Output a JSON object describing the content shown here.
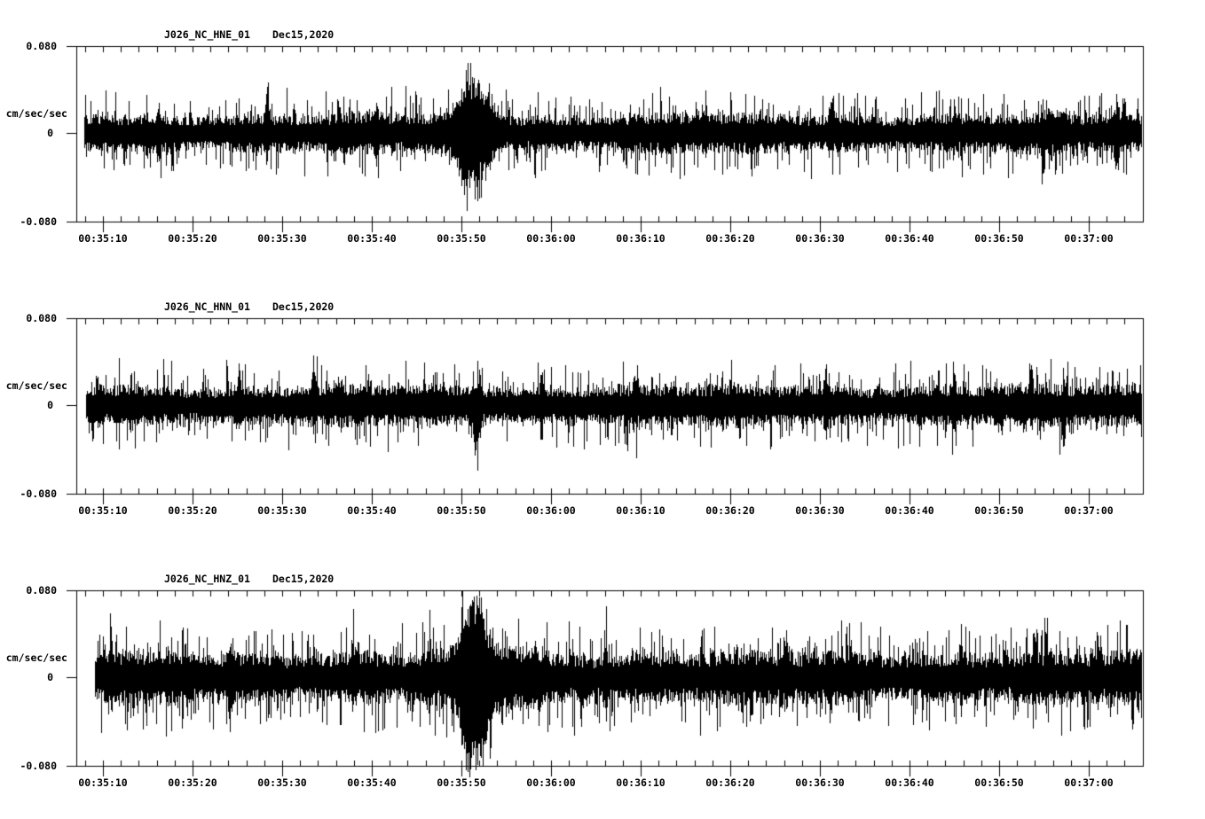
{
  "page": {
    "background_color": "#ffffff",
    "trace_color": "#000000",
    "text_color": "#000000"
  },
  "chart_data": [
    {
      "type": "line",
      "panel": "top",
      "station": "J026_NC_HNE_01",
      "date": "Dec15,2020",
      "ylabel": "cm/sec/sec",
      "y_max_label": "0.080",
      "y_zero_label": "0",
      "y_min_label": "-0.080",
      "ylim": [
        -0.08,
        0.08
      ],
      "xtick_labels": [
        "00:35:10",
        "00:35:20",
        "00:35:30",
        "00:35:40",
        "00:35:50",
        "00:36:00",
        "00:36:10",
        "00:36:20",
        "00:36:30",
        "00:36:40",
        "00:36:50",
        "00:37:00"
      ],
      "xtick_interval_seconds": 10,
      "minor_tick_seconds": 2,
      "time_window": {
        "start": "00:35:07",
        "end": "00:37:06"
      },
      "grid": "off",
      "trace": {
        "seed": 101,
        "start_t": 7.9,
        "end_t": 125.8,
        "noise_amp": 0.0171,
        "noise_tail_amp": 0.0278,
        "tail_exponent": 8,
        "clips_bottom_axis": false,
        "events": [
          {
            "t": 51.45,
            "sigma": 1.3,
            "up": 0.036,
            "down": 0.042
          },
          {
            "t": 50.1,
            "sigma": 0.5,
            "up": 0.012,
            "down": 0.01
          },
          {
            "t": 28.3,
            "sigma": 0.18,
            "up": 0.026,
            "down": 0.01
          },
          {
            "t": 16.2,
            "sigma": 0.15,
            "up": 0.016,
            "down": 0.018
          },
          {
            "t": 40.5,
            "sigma": 0.15,
            "up": 0.014,
            "down": 0.016
          },
          {
            "t": 91.2,
            "sigma": 0.18,
            "up": 0.022,
            "down": 0.01
          },
          {
            "t": 114.9,
            "sigma": 0.15,
            "up": 0.008,
            "down": 0.026
          },
          {
            "t": 123.1,
            "sigma": 0.18,
            "up": 0.02,
            "down": 0.022
          }
        ]
      }
    },
    {
      "type": "line",
      "panel": "middle",
      "station": "J026_NC_HNN_01",
      "date": "Dec15,2020",
      "ylabel": "cm/sec/sec",
      "y_max_label": "0.080",
      "y_zero_label": "0",
      "y_min_label": "-0.080",
      "ylim": [
        -0.08,
        0.08
      ],
      "xtick_labels": [
        "00:35:10",
        "00:35:20",
        "00:35:30",
        "00:35:40",
        "00:35:50",
        "00:36:00",
        "00:36:10",
        "00:36:20",
        "00:36:30",
        "00:36:40",
        "00:36:50",
        "00:37:00"
      ],
      "xtick_interval_seconds": 10,
      "minor_tick_seconds": 2,
      "time_window": {
        "start": "00:35:07",
        "end": "00:37:06"
      },
      "grid": "off",
      "trace": {
        "seed": 202,
        "start_t": 8.1,
        "end_t": 125.8,
        "noise_amp": 0.018,
        "noise_tail_amp": 0.0278,
        "tail_exponent": 9,
        "clips_bottom_axis": false,
        "events": [
          {
            "t": 33.5,
            "sigma": 0.18,
            "up": 0.04,
            "down": 0.01
          },
          {
            "t": 51.7,
            "sigma": 0.3,
            "up": 0.01,
            "down": 0.045
          },
          {
            "t": 25.1,
            "sigma": 0.15,
            "up": 0.016,
            "down": 0.014
          },
          {
            "t": 58.9,
            "sigma": 0.15,
            "up": 0.018,
            "down": 0.008
          },
          {
            "t": 69.3,
            "sigma": 0.18,
            "up": 0.02,
            "down": 0.01
          },
          {
            "t": 90.6,
            "sigma": 0.18,
            "up": 0.024,
            "down": 0.008
          },
          {
            "t": 104.9,
            "sigma": 0.18,
            "up": 0.022,
            "down": 0.01
          },
          {
            "t": 117.2,
            "sigma": 0.15,
            "up": 0.008,
            "down": 0.022
          }
        ]
      }
    },
    {
      "type": "line",
      "panel": "bottom",
      "station": "J026_NC_HNZ_01",
      "date": "Dec15,2020",
      "ylabel": "cm/sec/sec",
      "y_max_label": "0.080",
      "y_zero_label": "0",
      "y_min_label": "-0.080",
      "ylim": [
        -0.08,
        0.08
      ],
      "xtick_labels": [
        "00:35:10",
        "00:35:20",
        "00:35:30",
        "00:35:40",
        "00:35:50",
        "00:36:00",
        "00:36:10",
        "00:36:20",
        "00:36:30",
        "00:36:40",
        "00:36:50",
        "00:37:00"
      ],
      "xtick_interval_seconds": 10,
      "minor_tick_seconds": 2,
      "time_window": {
        "start": "00:35:07",
        "end": "00:37:06"
      },
      "grid": "off",
      "trace": {
        "seed": 303,
        "start_t": 9.1,
        "end_t": 125.8,
        "noise_amp": 0.0229,
        "noise_tail_amp": 0.0327,
        "tail_exponent": 7,
        "clips_bottom_axis": true,
        "events": [
          {
            "t": 51.35,
            "sigma": 1.1,
            "up": 0.058,
            "down": 0.075
          },
          {
            "t": 54.8,
            "sigma": 2.2,
            "up": 0.01,
            "down": 0.01
          },
          {
            "t": 10.9,
            "sigma": 0.15,
            "up": 0.024,
            "down": 0.01
          },
          {
            "t": 24.3,
            "sigma": 0.18,
            "up": 0.022,
            "down": 0.012
          },
          {
            "t": 37.9,
            "sigma": 0.15,
            "up": 0.02,
            "down": 0.014
          },
          {
            "t": 46.4,
            "sigma": 0.15,
            "up": 0.016,
            "down": 0.018
          },
          {
            "t": 66.1,
            "sigma": 0.18,
            "up": 0.018,
            "down": 0.016
          },
          {
            "t": 86.2,
            "sigma": 0.15,
            "up": 0.02,
            "down": 0.01
          },
          {
            "t": 105.7,
            "sigma": 0.18,
            "up": 0.024,
            "down": 0.01
          },
          {
            "t": 113.9,
            "sigma": 0.18,
            "up": 0.03,
            "down": 0.01
          },
          {
            "t": 121.0,
            "sigma": 0.15,
            "up": 0.02,
            "down": 0.016
          }
        ]
      }
    }
  ]
}
